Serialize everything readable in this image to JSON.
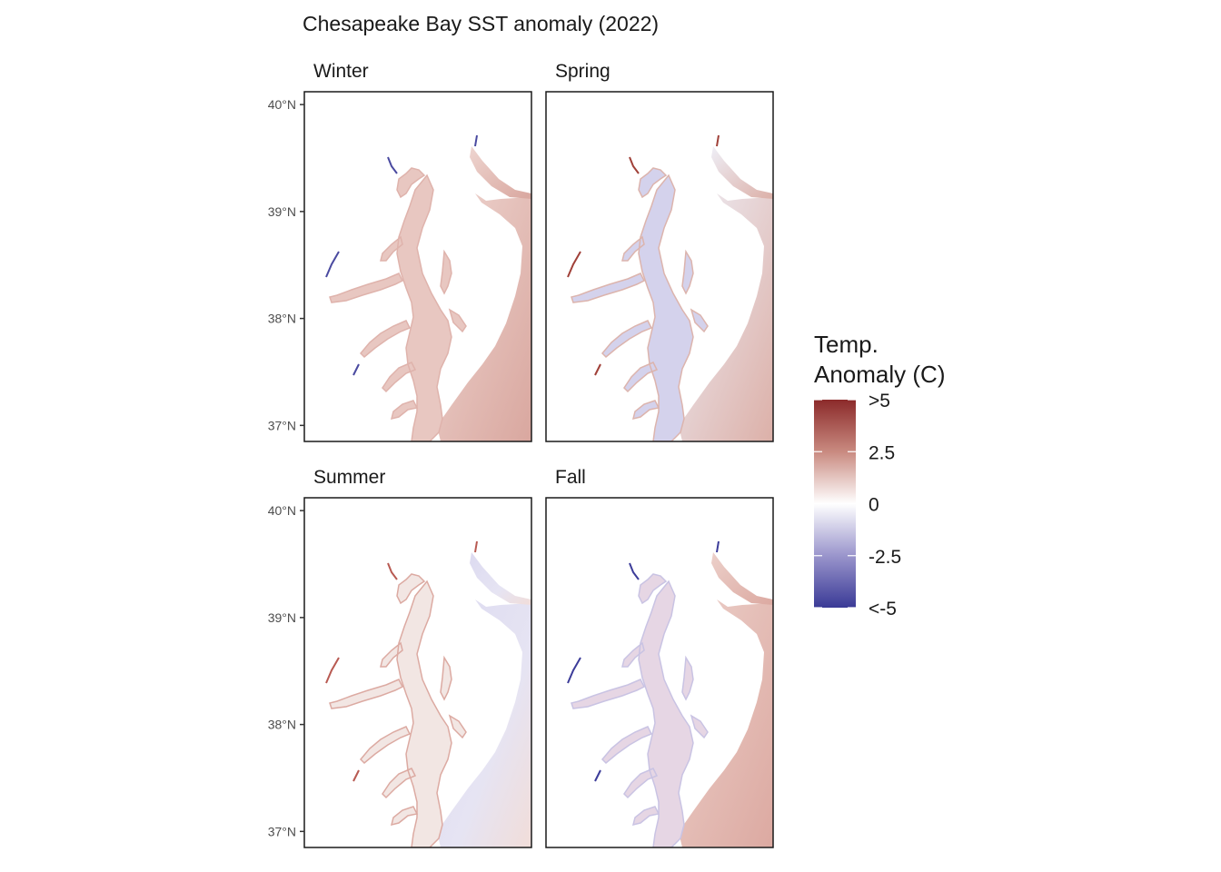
{
  "title": "Chesapeake Bay SST anomaly (2022)",
  "panels": [
    {
      "name": "Winter",
      "pattern": "warm"
    },
    {
      "name": "Spring",
      "pattern": "mixed"
    },
    {
      "name": "Summer",
      "pattern": "coolocean"
    },
    {
      "name": "Fall",
      "pattern": "warmocean"
    }
  ],
  "y_axis": {
    "ticks": [
      {
        "value": 40,
        "label": "40°N"
      },
      {
        "value": 39,
        "label": "39°N"
      },
      {
        "value": 38,
        "label": "38°N"
      },
      {
        "value": 37,
        "label": "37°N"
      }
    ],
    "range": [
      36.85,
      40.12
    ]
  },
  "legend": {
    "title_line1": "Temp.",
    "title_line2": "Anomaly (C)",
    "range": [
      -5,
      5
    ],
    "ticks": [
      {
        "value": 5,
        "label": ">5"
      },
      {
        "value": 2.5,
        "label": "2.5"
      },
      {
        "value": 0,
        "label": "0"
      },
      {
        "value": -2.5,
        "label": "-2.5"
      },
      {
        "value": -5,
        "label": "<-5"
      }
    ],
    "colors": {
      "high": "#8b2a2a",
      "mid_high": "#c98a80",
      "mid": "#ffffff",
      "mid_low": "#9a95cc",
      "low": "#3a3a96"
    }
  },
  "colors": {
    "warm": "#d9a79f",
    "cool": "#c9c6e6",
    "deep_warm": "#b85a52",
    "deep_cool": "#3c3c99",
    "frame": "#1a1a1a"
  }
}
